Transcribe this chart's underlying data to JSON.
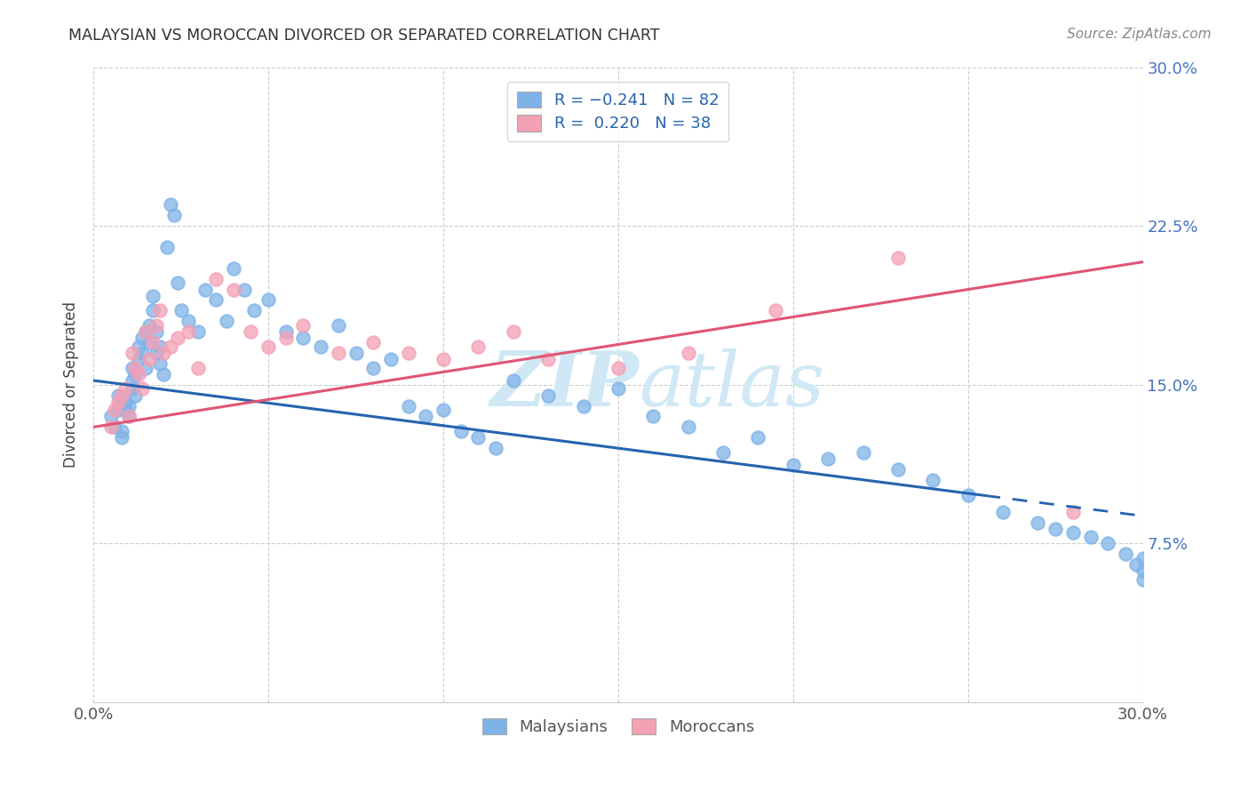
{
  "title": "MALAYSIAN VS MOROCCAN DIVORCED OR SEPARATED CORRELATION CHART",
  "source": "Source: ZipAtlas.com",
  "ylabel": "Divorced or Separated",
  "xlim": [
    0.0,
    0.3
  ],
  "ylim": [
    0.0,
    0.3
  ],
  "malaysian_color": "#7fb3e8",
  "moroccan_color": "#f4a0b5",
  "trendline_malaysian_color": "#2563b0",
  "trendline_moroccan_color": "#e05575",
  "watermark_color": "#d0e8f5",
  "background_color": "#ffffff",
  "legend_r_color": "#2563b0",
  "legend_n_color": "#2563b0",
  "ytick_color": "#4472c4",
  "malaysians_x": [
    0.005,
    0.006,
    0.007,
    0.007,
    0.008,
    0.008,
    0.009,
    0.009,
    0.01,
    0.01,
    0.011,
    0.011,
    0.011,
    0.012,
    0.012,
    0.013,
    0.013,
    0.014,
    0.014,
    0.015,
    0.015,
    0.016,
    0.016,
    0.017,
    0.017,
    0.018,
    0.018,
    0.019,
    0.019,
    0.02,
    0.021,
    0.022,
    0.023,
    0.024,
    0.025,
    0.027,
    0.03,
    0.032,
    0.035,
    0.038,
    0.04,
    0.043,
    0.046,
    0.05,
    0.055,
    0.06,
    0.065,
    0.07,
    0.075,
    0.08,
    0.085,
    0.09,
    0.095,
    0.1,
    0.105,
    0.11,
    0.115,
    0.12,
    0.13,
    0.14,
    0.15,
    0.16,
    0.17,
    0.18,
    0.19,
    0.2,
    0.21,
    0.22,
    0.23,
    0.24,
    0.25,
    0.26,
    0.27,
    0.275,
    0.28,
    0.285,
    0.29,
    0.295,
    0.298,
    0.3,
    0.3,
    0.3
  ],
  "malaysians_y": [
    0.135,
    0.13,
    0.145,
    0.138,
    0.125,
    0.128,
    0.138,
    0.142,
    0.14,
    0.135,
    0.148,
    0.152,
    0.158,
    0.145,
    0.155,
    0.162,
    0.168,
    0.172,
    0.165,
    0.158,
    0.175,
    0.17,
    0.178,
    0.185,
    0.192,
    0.165,
    0.175,
    0.168,
    0.16,
    0.155,
    0.215,
    0.235,
    0.23,
    0.198,
    0.185,
    0.18,
    0.175,
    0.195,
    0.19,
    0.18,
    0.205,
    0.195,
    0.185,
    0.19,
    0.175,
    0.172,
    0.168,
    0.178,
    0.165,
    0.158,
    0.162,
    0.14,
    0.135,
    0.138,
    0.128,
    0.125,
    0.12,
    0.152,
    0.145,
    0.14,
    0.148,
    0.135,
    0.13,
    0.118,
    0.125,
    0.112,
    0.115,
    0.118,
    0.11,
    0.105,
    0.098,
    0.09,
    0.085,
    0.082,
    0.08,
    0.078,
    0.075,
    0.07,
    0.065,
    0.068,
    0.062,
    0.058
  ],
  "moroccans_x": [
    0.005,
    0.006,
    0.007,
    0.008,
    0.009,
    0.01,
    0.011,
    0.012,
    0.013,
    0.014,
    0.015,
    0.016,
    0.017,
    0.018,
    0.019,
    0.02,
    0.022,
    0.024,
    0.027,
    0.03,
    0.035,
    0.04,
    0.045,
    0.05,
    0.055,
    0.06,
    0.07,
    0.08,
    0.09,
    0.1,
    0.11,
    0.12,
    0.13,
    0.15,
    0.17,
    0.195,
    0.23,
    0.28
  ],
  "moroccans_y": [
    0.13,
    0.138,
    0.142,
    0.145,
    0.148,
    0.135,
    0.165,
    0.158,
    0.155,
    0.148,
    0.175,
    0.162,
    0.17,
    0.178,
    0.185,
    0.165,
    0.168,
    0.172,
    0.175,
    0.158,
    0.2,
    0.195,
    0.175,
    0.168,
    0.172,
    0.178,
    0.165,
    0.17,
    0.165,
    0.162,
    0.168,
    0.175,
    0.162,
    0.158,
    0.165,
    0.185,
    0.21,
    0.09
  ],
  "trendline_mal_x0": 0.0,
  "trendline_mal_y0": 0.152,
  "trendline_mal_x1": 0.3,
  "trendline_mal_y1": 0.088,
  "trendline_mal_solid_end": 0.255,
  "trendline_mor_x0": 0.0,
  "trendline_mor_y0": 0.13,
  "trendline_mor_x1": 0.3,
  "trendline_mor_y1": 0.208
}
